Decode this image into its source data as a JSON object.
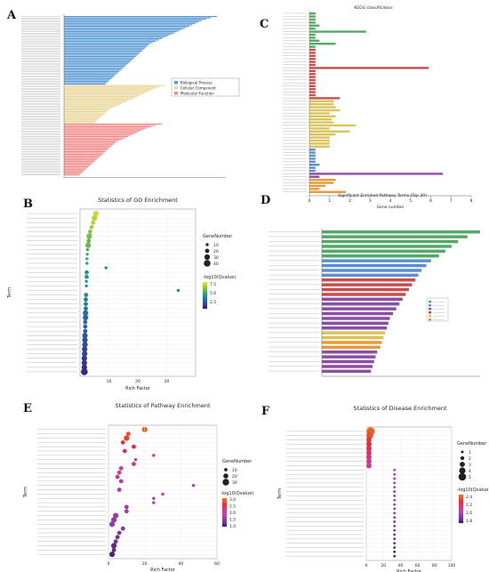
{
  "panels": {
    "A": {
      "letter": "A"
    },
    "B": {
      "letter": "B"
    },
    "C": {
      "letter": "C"
    },
    "D": {
      "letter": "D"
    },
    "E": {
      "letter": "E"
    },
    "F": {
      "letter": "F"
    }
  },
  "colors": {
    "bp": "#5b9bd5",
    "cc": "#e9d79a",
    "mf": "#f08a8a",
    "kegg_green": "#55a868",
    "kegg_red": "#c94d4d",
    "kegg_yellow": "#d8c45a",
    "kegg_blue": "#5d8fd0",
    "kegg_purple": "#8a4fa3",
    "kegg_orange": "#e69a3c",
    "grad_high": "#e0202a",
    "grad_mid": "#c86be0",
    "grad_low": "#3a2b8a"
  },
  "chart_data": [
    {
      "panel": "A",
      "type": "bar",
      "orientation": "horizontal",
      "legend": [
        "Biological Process",
        "Cellular Component",
        "Molecular Function"
      ],
      "legend_position": "right",
      "series": [
        {
          "name": "Biological Process",
          "values": [
            100,
            96,
            93,
            90,
            88,
            86,
            84,
            82,
            80,
            78,
            76,
            74,
            72,
            70,
            68,
            66,
            64,
            62,
            60,
            58,
            56,
            55,
            54,
            53,
            52,
            51,
            50,
            49,
            48,
            47,
            46,
            45,
            44,
            43,
            42,
            41,
            40,
            39,
            38,
            37,
            36,
            35,
            34,
            33,
            32,
            31,
            30,
            29,
            28,
            27
          ]
        },
        {
          "name": "Cellular Component",
          "values": [
            66,
            62,
            60,
            58,
            56,
            54,
            52,
            50,
            48,
            46,
            44,
            42,
            40,
            38,
            36,
            34,
            32,
            30,
            29,
            28,
            27,
            26,
            25,
            24,
            23,
            22,
            21,
            20
          ]
        },
        {
          "name": "Molecular Function",
          "values": [
            64,
            60,
            57,
            54,
            52,
            50,
            48,
            46,
            44,
            42,
            40,
            38,
            36,
            34,
            33,
            32,
            31,
            30,
            29,
            28,
            27,
            26,
            25,
            24,
            23,
            22,
            21,
            20,
            19,
            18,
            17,
            16,
            15,
            14,
            13,
            12,
            11,
            10
          ]
        }
      ]
    },
    {
      "panel": "C",
      "type": "bar",
      "orientation": "horizontal",
      "title": "KEGG classification",
      "xlabel": "Gene number",
      "x_ticks": [
        "0",
        "1",
        "2",
        "3",
        "4",
        "5",
        "6",
        "7",
        "8"
      ],
      "xlim": [
        0,
        8
      ],
      "groups": [
        {
          "color_key": "kegg_green",
          "values": [
            0.3,
            0.3,
            0.3,
            0.3,
            0.5,
            0.3,
            2.8,
            0.3,
            0.3,
            0.5,
            1.3,
            0.3
          ]
        },
        {
          "color_key": "kegg_red",
          "values": [
            0.3,
            0.3,
            0.3,
            0.3,
            0.3,
            0.3,
            5.9,
            0.3,
            0.3,
            0.3,
            0.3,
            0.3,
            0.3,
            0.3,
            0.3,
            0.3,
            1.5
          ]
        },
        {
          "color_key": "kegg_yellow",
          "values": [
            1.2,
            1.2,
            1.3,
            1.5,
            1.0,
            1.3,
            1.1,
            1.2,
            2.3,
            1.0,
            2.0,
            1.3,
            1.0,
            1.0,
            1.0,
            1.0
          ]
        },
        {
          "color_key": "kegg_blue",
          "values": [
            0.3,
            0.3,
            0.3,
            0.3,
            0.3,
            0.5,
            0.3,
            0.3
          ]
        },
        {
          "color_key": "kegg_purple",
          "values": [
            6.6,
            0.5
          ]
        },
        {
          "color_key": "kegg_orange",
          "values": [
            1.3,
            1.2,
            0.8,
            0.5,
            1.8
          ]
        }
      ]
    },
    {
      "panel": "B",
      "type": "scatter",
      "title": "Statistics of GO Enrichment",
      "xlabel": "Rich Factor",
      "ylabel": "Term",
      "x_ticks": [
        "10",
        "20",
        "30"
      ],
      "xlim": [
        0,
        40
      ],
      "size_legend": {
        "title": "GeneNumber",
        "values": [
          "10",
          "20",
          "30",
          "40"
        ]
      },
      "color_legend": {
        "title": "-log10(Qvalue)",
        "values": [
          "7.5",
          "5.0",
          "2.5"
        ]
      },
      "rows": 36,
      "points": [
        {
          "x": 5.5,
          "c": 0.95,
          "s": 3
        },
        {
          "x": 5.0,
          "c": 0.9,
          "s": 3
        },
        {
          "x": 4.5,
          "c": 0.88,
          "s": 2
        },
        {
          "x": 4.0,
          "c": 0.85,
          "s": 2
        },
        {
          "x": 3.5,
          "c": 0.8,
          "s": 2
        },
        {
          "x": 3.2,
          "c": 0.75,
          "s": 3
        },
        {
          "x": 3.0,
          "c": 0.7,
          "s": 2
        },
        {
          "x": 2.8,
          "c": 0.7,
          "s": 3
        },
        {
          "x": 2.6,
          "c": 0.6,
          "s": 1
        },
        {
          "x": 2.5,
          "c": 0.6,
          "s": 1
        },
        {
          "x": 2.4,
          "c": 0.6,
          "s": 1
        },
        {
          "x": 2.4,
          "c": 0.55,
          "s": 1
        },
        {
          "x": 9.0,
          "c": 0.5,
          "s": 1
        },
        {
          "x": 2.3,
          "c": 0.5,
          "s": 2
        },
        {
          "x": 2.3,
          "c": 0.5,
          "s": 2
        },
        {
          "x": 2.2,
          "c": 0.5,
          "s": 1
        },
        {
          "x": 2.2,
          "c": 0.5,
          "s": 1
        },
        {
          "x": 34.0,
          "c": 0.45,
          "s": 1
        },
        {
          "x": 2.1,
          "c": 0.45,
          "s": 2
        },
        {
          "x": 2.0,
          "c": 0.4,
          "s": 2
        },
        {
          "x": 2.0,
          "c": 0.4,
          "s": 2
        },
        {
          "x": 2.0,
          "c": 0.35,
          "s": 2
        },
        {
          "x": 1.9,
          "c": 0.35,
          "s": 3
        },
        {
          "x": 1.9,
          "c": 0.3,
          "s": 3
        },
        {
          "x": 1.8,
          "c": 0.3,
          "s": 2
        },
        {
          "x": 1.8,
          "c": 0.3,
          "s": 2
        },
        {
          "x": 1.8,
          "c": 0.25,
          "s": 2
        },
        {
          "x": 1.7,
          "c": 0.25,
          "s": 3
        },
        {
          "x": 1.7,
          "c": 0.2,
          "s": 3
        },
        {
          "x": 1.7,
          "c": 0.2,
          "s": 3
        },
        {
          "x": 1.6,
          "c": 0.15,
          "s": 3
        },
        {
          "x": 1.6,
          "c": 0.15,
          "s": 3
        },
        {
          "x": 1.5,
          "c": 0.1,
          "s": 3
        },
        {
          "x": 1.5,
          "c": 0.1,
          "s": 3
        },
        {
          "x": 1.5,
          "c": 0.05,
          "s": 3
        },
        {
          "x": 1.5,
          "c": 0.05,
          "s": 4
        }
      ]
    },
    {
      "panel": "D",
      "type": "bar",
      "orientation": "horizontal",
      "title": "Significant Enriched Pathway Terms (Top 30)",
      "groups": [
        {
          "color_key": "kegg_green",
          "values": [
            10.0,
            9.2,
            8.6,
            8.2,
            7.8,
            7.4
          ]
        },
        {
          "color_key": "kegg_blue",
          "values": [
            6.9,
            6.6,
            6.3,
            6.1
          ]
        },
        {
          "color_key": "kegg_red",
          "values": [
            5.9,
            5.7,
            5.5,
            5.3
          ]
        },
        {
          "color_key": "kegg_purple",
          "values": [
            5.1,
            4.9,
            4.7,
            4.5,
            4.3,
            4.2,
            4.1
          ]
        },
        {
          "color_key": "kegg_yellow",
          "values": [
            4.0,
            3.9
          ]
        },
        {
          "color_key": "kegg_orange",
          "values": [
            3.8,
            3.7
          ]
        },
        {
          "color_key": "kegg_purple",
          "values": [
            3.5,
            3.4,
            3.3,
            3.2,
            3.1
          ]
        }
      ]
    },
    {
      "panel": "E",
      "type": "scatter",
      "title": "Statistics of Pathway Enrichment",
      "xlabel": "Rich Factor",
      "ylabel": "Term",
      "x_ticks": [
        "0",
        "20",
        "40",
        "60"
      ],
      "xlim": [
        0,
        60
      ],
      "size_legend": {
        "title": "GeneNumber",
        "values": [
          "10",
          "20",
          "30"
        ]
      },
      "color_legend": {
        "title": "-log10(Qvalue)",
        "values": [
          "3.0",
          "2.5",
          "2.0",
          "1.5",
          "1.0"
        ]
      },
      "points": [
        {
          "x": 20.0,
          "c": 0.95,
          "s": 3
        },
        {
          "x": 11.0,
          "c": 0.9,
          "s": 2
        },
        {
          "x": 10.0,
          "c": 0.85,
          "s": 3
        },
        {
          "x": 8.0,
          "c": 0.8,
          "s": 2
        },
        {
          "x": 14.0,
          "c": 0.75,
          "s": 2
        },
        {
          "x": 9.0,
          "c": 0.7,
          "s": 2
        },
        {
          "x": 25.0,
          "c": 0.6,
          "s": 1
        },
        {
          "x": 15.0,
          "c": 0.6,
          "s": 1
        },
        {
          "x": 14.0,
          "c": 0.55,
          "s": 2
        },
        {
          "x": 7.0,
          "c": 0.5,
          "s": 2
        },
        {
          "x": 6.0,
          "c": 0.5,
          "s": 2
        },
        {
          "x": 5.0,
          "c": 0.45,
          "s": 2
        },
        {
          "x": 7.0,
          "c": 0.45,
          "s": 2
        },
        {
          "x": 47.0,
          "c": 0.4,
          "s": 1
        },
        {
          "x": 6.0,
          "c": 0.4,
          "s": 2
        },
        {
          "x": 30.0,
          "c": 0.4,
          "s": 1
        },
        {
          "x": 25.0,
          "c": 0.35,
          "s": 1
        },
        {
          "x": 25.0,
          "c": 0.35,
          "s": 1
        },
        {
          "x": 10.0,
          "c": 0.3,
          "s": 2
        },
        {
          "x": 10.0,
          "c": 0.3,
          "s": 2
        },
        {
          "x": 4.0,
          "c": 0.3,
          "s": 3
        },
        {
          "x": 3.0,
          "c": 0.25,
          "s": 3
        },
        {
          "x": 2.0,
          "c": 0.25,
          "s": 3
        },
        {
          "x": 8.0,
          "c": 0.2,
          "s": 2
        },
        {
          "x": 6.0,
          "c": 0.2,
          "s": 2
        },
        {
          "x": 5.0,
          "c": 0.15,
          "s": 2
        },
        {
          "x": 4.0,
          "c": 0.15,
          "s": 2
        },
        {
          "x": 3.0,
          "c": 0.1,
          "s": 3
        },
        {
          "x": 3.0,
          "c": 0.1,
          "s": 2
        },
        {
          "x": 2.0,
          "c": 0.05,
          "s": 3
        }
      ]
    },
    {
      "panel": "F",
      "type": "scatter",
      "title": "Statistics of Disease Enrichment",
      "xlabel": "Rich Factor",
      "ylabel": "Term",
      "x_ticks": [
        "0",
        "20",
        "40",
        "60",
        "80",
        "100"
      ],
      "xlim": [
        0,
        100
      ],
      "size_legend": {
        "title": "GeneNumber",
        "values": [
          "1",
          "2",
          "3",
          "4",
          "5"
        ]
      },
      "color_legend": {
        "title": "-log10(Qvalue)",
        "values": [
          "2.4",
          "2.2",
          "2.0",
          "1.8"
        ]
      },
      "points": [
        {
          "x": 5.0,
          "c": 0.98,
          "s": 5
        },
        {
          "x": 4.0,
          "c": 0.9,
          "s": 4
        },
        {
          "x": 3.0,
          "c": 0.8,
          "s": 3
        },
        {
          "x": 3.0,
          "c": 0.75,
          "s": 3
        },
        {
          "x": 3.0,
          "c": 0.7,
          "s": 3
        },
        {
          "x": 3.0,
          "c": 0.65,
          "s": 3
        },
        {
          "x": 3.0,
          "c": 0.6,
          "s": 3
        },
        {
          "x": 3.0,
          "c": 0.55,
          "s": 3
        },
        {
          "x": 3.0,
          "c": 0.5,
          "s": 3
        },
        {
          "x": 33.0,
          "c": 0.4,
          "s": 1
        },
        {
          "x": 33.0,
          "c": 0.4,
          "s": 1
        },
        {
          "x": 33.0,
          "c": 0.4,
          "s": 1
        },
        {
          "x": 33.0,
          "c": 0.35,
          "s": 1
        },
        {
          "x": 33.0,
          "c": 0.35,
          "s": 1
        },
        {
          "x": 33.0,
          "c": 0.35,
          "s": 1
        },
        {
          "x": 33.0,
          "c": 0.3,
          "s": 1
        },
        {
          "x": 33.0,
          "c": 0.3,
          "s": 1
        },
        {
          "x": 33.0,
          "c": 0.3,
          "s": 1
        },
        {
          "x": 33.0,
          "c": 0.25,
          "s": 1
        },
        {
          "x": 33.0,
          "c": 0.25,
          "s": 1
        },
        {
          "x": 33.0,
          "c": 0.25,
          "s": 1
        },
        {
          "x": 33.0,
          "c": 0.2,
          "s": 1
        },
        {
          "x": 33.0,
          "c": 0.2,
          "s": 1
        },
        {
          "x": 33.0,
          "c": 0.2,
          "s": 1
        },
        {
          "x": 33.0,
          "c": 0.15,
          "s": 1
        },
        {
          "x": 33.0,
          "c": 0.15,
          "s": 1
        },
        {
          "x": 33.0,
          "c": 0.1,
          "s": 1
        },
        {
          "x": 33.0,
          "c": 0.1,
          "s": 1
        },
        {
          "x": 33.0,
          "c": 0.05,
          "s": 1
        },
        {
          "x": 33.0,
          "c": 0.05,
          "s": 1
        }
      ]
    }
  ]
}
